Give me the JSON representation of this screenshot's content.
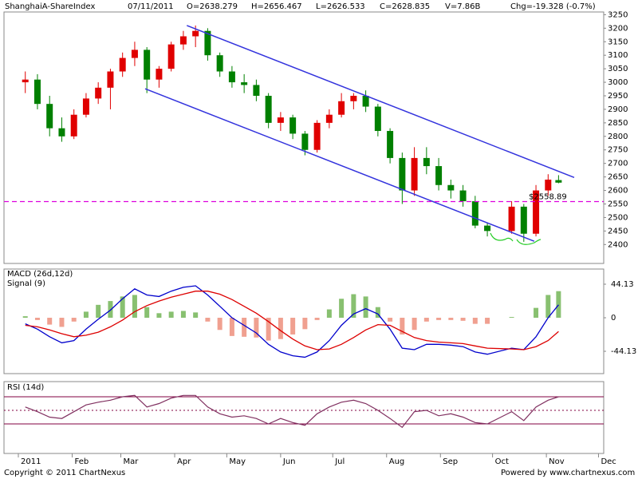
{
  "header": {
    "symbol": "ShanghaiA-ShareIndex",
    "date": "07/11/2011",
    "open": "O=2638.279",
    "high": "H=2656.467",
    "low": "L=2626.533",
    "close": "C=2628.835",
    "volume": "V=7.86B",
    "change": "Chg=-19.328 (-0.7%)"
  },
  "footer": {
    "copyright": "Copyright © 2011 ChartNexus",
    "powered": "Powered by www.chartnexus.com"
  },
  "chart_data": [
    {
      "type": "candlestick",
      "up_color": "#e00000",
      "down_color": "#008000",
      "xlim": [
        0,
        337
      ],
      "xticks": [
        {
          "value": 0,
          "label": "2011"
        },
        {
          "value": 31,
          "label": "Feb"
        },
        {
          "value": 59,
          "label": "Mar"
        },
        {
          "value": 90,
          "label": "Apr"
        },
        {
          "value": 120,
          "label": "May"
        },
        {
          "value": 151,
          "label": "Jun"
        },
        {
          "value": 181,
          "label": "Jul"
        },
        {
          "value": 212,
          "label": "Aug"
        },
        {
          "value": 243,
          "label": "Sep"
        },
        {
          "value": 273,
          "label": "Oct"
        },
        {
          "value": 304,
          "label": "Nov"
        },
        {
          "value": 334,
          "label": "Dec"
        }
      ],
      "ylim": [
        2330,
        3260
      ],
      "yticks": [
        2400,
        2450,
        2500,
        2550,
        2600,
        2650,
        2700,
        2750,
        2800,
        2850,
        2900,
        2950,
        3000,
        3050,
        3100,
        3150,
        3200,
        3250
      ],
      "x": [
        4,
        11,
        18,
        25,
        32,
        39,
        46,
        53,
        60,
        67,
        74,
        81,
        88,
        95,
        102,
        109,
        116,
        123,
        130,
        137,
        144,
        151,
        158,
        165,
        172,
        179,
        186,
        193,
        200,
        207,
        214,
        221,
        228,
        235,
        242,
        249,
        256,
        263,
        270,
        284,
        291,
        298,
        305,
        311
      ],
      "open": [
        3000,
        3010,
        2920,
        2830,
        2800,
        2880,
        2940,
        2980,
        3040,
        3090,
        3120,
        3010,
        3050,
        3140,
        3170,
        3190,
        3100,
        3040,
        3000,
        2990,
        2950,
        2850,
        2870,
        2810,
        2750,
        2850,
        2880,
        2930,
        2950,
        2910,
        2820,
        2720,
        2600,
        2720,
        2690,
        2620,
        2600,
        2560,
        2470,
        2450,
        2540,
        2440,
        2600,
        2638.279
      ],
      "high": [
        3040,
        3030,
        2950,
        2870,
        2900,
        2960,
        3000,
        3050,
        3110,
        3150,
        3130,
        3060,
        3150,
        3190,
        3210,
        3200,
        3110,
        3060,
        3030,
        3010,
        2960,
        2890,
        2880,
        2820,
        2860,
        2900,
        2960,
        2960,
        2970,
        2920,
        2830,
        2740,
        2760,
        2760,
        2720,
        2640,
        2620,
        2580,
        2480,
        2560,
        2550,
        2620,
        2660,
        2656.467
      ],
      "low": [
        2960,
        2900,
        2800,
        2780,
        2790,
        2870,
        2920,
        2900,
        3020,
        3060,
        2960,
        2980,
        3040,
        3120,
        3130,
        3080,
        3020,
        2980,
        2960,
        2930,
        2830,
        2820,
        2790,
        2730,
        2740,
        2830,
        2870,
        2900,
        2890,
        2800,
        2700,
        2550,
        2580,
        2660,
        2600,
        2570,
        2540,
        2460,
        2430,
        2440,
        2410,
        2430,
        2580,
        2626.533
      ],
      "close": [
        3010,
        2920,
        2830,
        2800,
        2880,
        2940,
        2980,
        3040,
        3090,
        3120,
        3010,
        3050,
        3140,
        3170,
        3190,
        3100,
        3040,
        3000,
        2990,
        2950,
        2850,
        2870,
        2810,
        2750,
        2850,
        2880,
        2930,
        2950,
        2910,
        2820,
        2720,
        2600,
        2720,
        2690,
        2620,
        2600,
        2560,
        2470,
        2450,
        2540,
        2440,
        2600,
        2640,
        2628.835
      ],
      "trendlines": [
        {
          "color": "#3333dd",
          "x": [
            97,
            320
          ],
          "y": [
            3210,
            2648
          ]
        },
        {
          "color": "#3333dd",
          "x": [
            73,
            297
          ],
          "y": [
            2976,
            2412
          ]
        }
      ],
      "hline": {
        "value": 2558.89,
        "label": "$2558.89",
        "color": "#dd00dd"
      }
    },
    {
      "type": "macd",
      "ylim": [
        -73.5,
        64.1
      ],
      "yticks": [
        {
          "value": 44.13,
          "label": "44.13"
        },
        0,
        {
          "value": -44.13,
          "label": "-44.13"
        }
      ],
      "series": [
        {
          "name": "MACD (26d,12d)",
          "color": "#0000cc",
          "values": [
            -8,
            -15,
            -25,
            -33,
            -30,
            -15,
            -2,
            10,
            25,
            38,
            30,
            28,
            35,
            40,
            42,
            30,
            15,
            0,
            -10,
            -20,
            -35,
            -45,
            -50,
            -52,
            -45,
            -30,
            -10,
            5,
            12,
            5,
            -15,
            -40,
            -42,
            -35,
            -35,
            -36,
            -38,
            -45,
            -48,
            -40,
            -42,
            -25,
            0,
            17
          ]
        },
        {
          "name": "Signal (9)",
          "color": "#dd0000",
          "values": [
            -10,
            -12,
            -16,
            -21,
            -25,
            -23,
            -19,
            -12,
            -3,
            8,
            16,
            22,
            27,
            31,
            35,
            35,
            31,
            24,
            15,
            6,
            -5,
            -17,
            -28,
            -37,
            -42,
            -41,
            -35,
            -26,
            -16,
            -9,
            -10,
            -18,
            -26,
            -30,
            -32,
            -33,
            -34,
            -37,
            -40,
            -41,
            -42,
            -38,
            -30,
            -18
          ]
        }
      ],
      "histogram": {
        "pos_color": "#88c070",
        "neg_color": "#f0a090",
        "values": [
          2,
          -3,
          -9,
          -12,
          -5,
          8,
          17,
          22,
          28,
          30,
          14,
          6,
          8,
          9,
          7,
          -5,
          -16,
          -24,
          -25,
          -26,
          -30,
          -28,
          -22,
          -15,
          -3,
          11,
          25,
          31,
          28,
          14,
          -5,
          -22,
          -16,
          -5,
          -3,
          -3,
          -4,
          -8,
          -8,
          1,
          0,
          13,
          30,
          35
        ]
      }
    },
    {
      "type": "rsi",
      "ylim": [
        -13.5,
        92.4
      ],
      "hlines": [
        70,
        50,
        30
      ],
      "hline_color": "#800040",
      "series": [
        {
          "name": "RSI (14d)",
          "color": "#803060",
          "values": [
            55,
            48,
            40,
            38,
            48,
            58,
            62,
            65,
            70,
            72,
            55,
            60,
            68,
            72,
            72,
            55,
            45,
            40,
            42,
            38,
            30,
            38,
            32,
            28,
            45,
            55,
            62,
            65,
            60,
            50,
            38,
            25,
            48,
            50,
            42,
            45,
            40,
            32,
            30,
            48,
            35,
            55,
            65,
            70
          ]
        }
      ]
    }
  ]
}
